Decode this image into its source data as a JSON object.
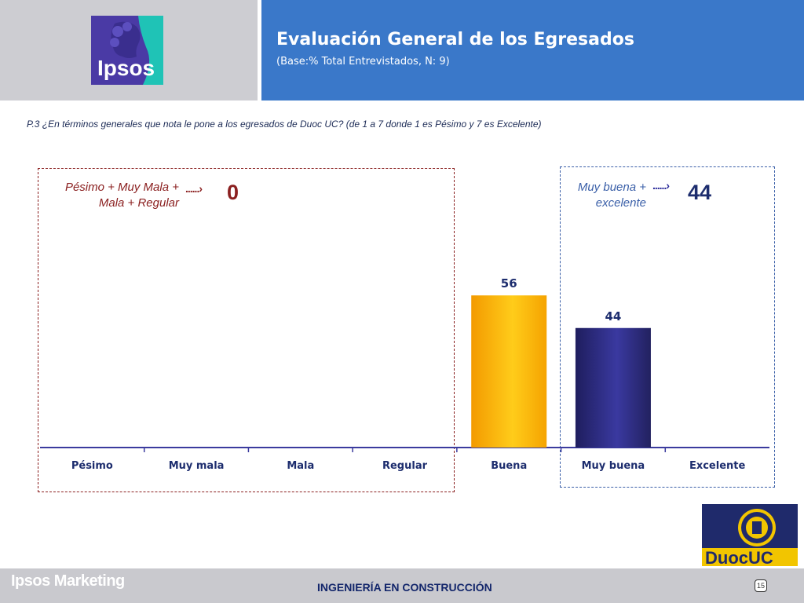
{
  "header": {
    "title": "Evaluación General de los Egresados",
    "subtitle": "(Base:% Total Entrevistados, N: 9)",
    "brand_logo_text": "Ipsos"
  },
  "question": "P.3 ¿En términos generales que nota le pone a los egresados de Duoc UC? (de 1 a 7 donde 1 es Pésimo y 7 es Excelente)",
  "groups": {
    "negative": {
      "label": "Pésimo + Muy Mala + Mala + Regular",
      "value": "0",
      "arrow": "......›"
    },
    "positive": {
      "label": "Muy buena + excelente",
      "value": "44",
      "arrow": "......›"
    }
  },
  "chart_data": {
    "type": "bar",
    "categories": [
      "Pésimo",
      "Muy mala",
      "Mala",
      "Regular",
      "Buena",
      "Muy buena",
      "Excelente"
    ],
    "values": [
      0,
      0,
      0,
      0,
      56,
      44,
      0
    ],
    "data_labels": [
      "",
      "",
      "",
      "",
      "56",
      "44",
      ""
    ],
    "ylim": [
      0,
      100
    ],
    "title": "",
    "xlabel": "",
    "ylabel": "",
    "colors": {
      "Buena": "#f7a800",
      "Muy buena": "#2e2d7c",
      "axis": "#3b3b9e",
      "label": "#1d2d6e"
    }
  },
  "sponsor_logo_text": "DuocUC",
  "footer": {
    "brand": "Ipsos Marketing",
    "center": "INGENIERÍA EN CONSTRUCCIÓN",
    "page": "15"
  }
}
